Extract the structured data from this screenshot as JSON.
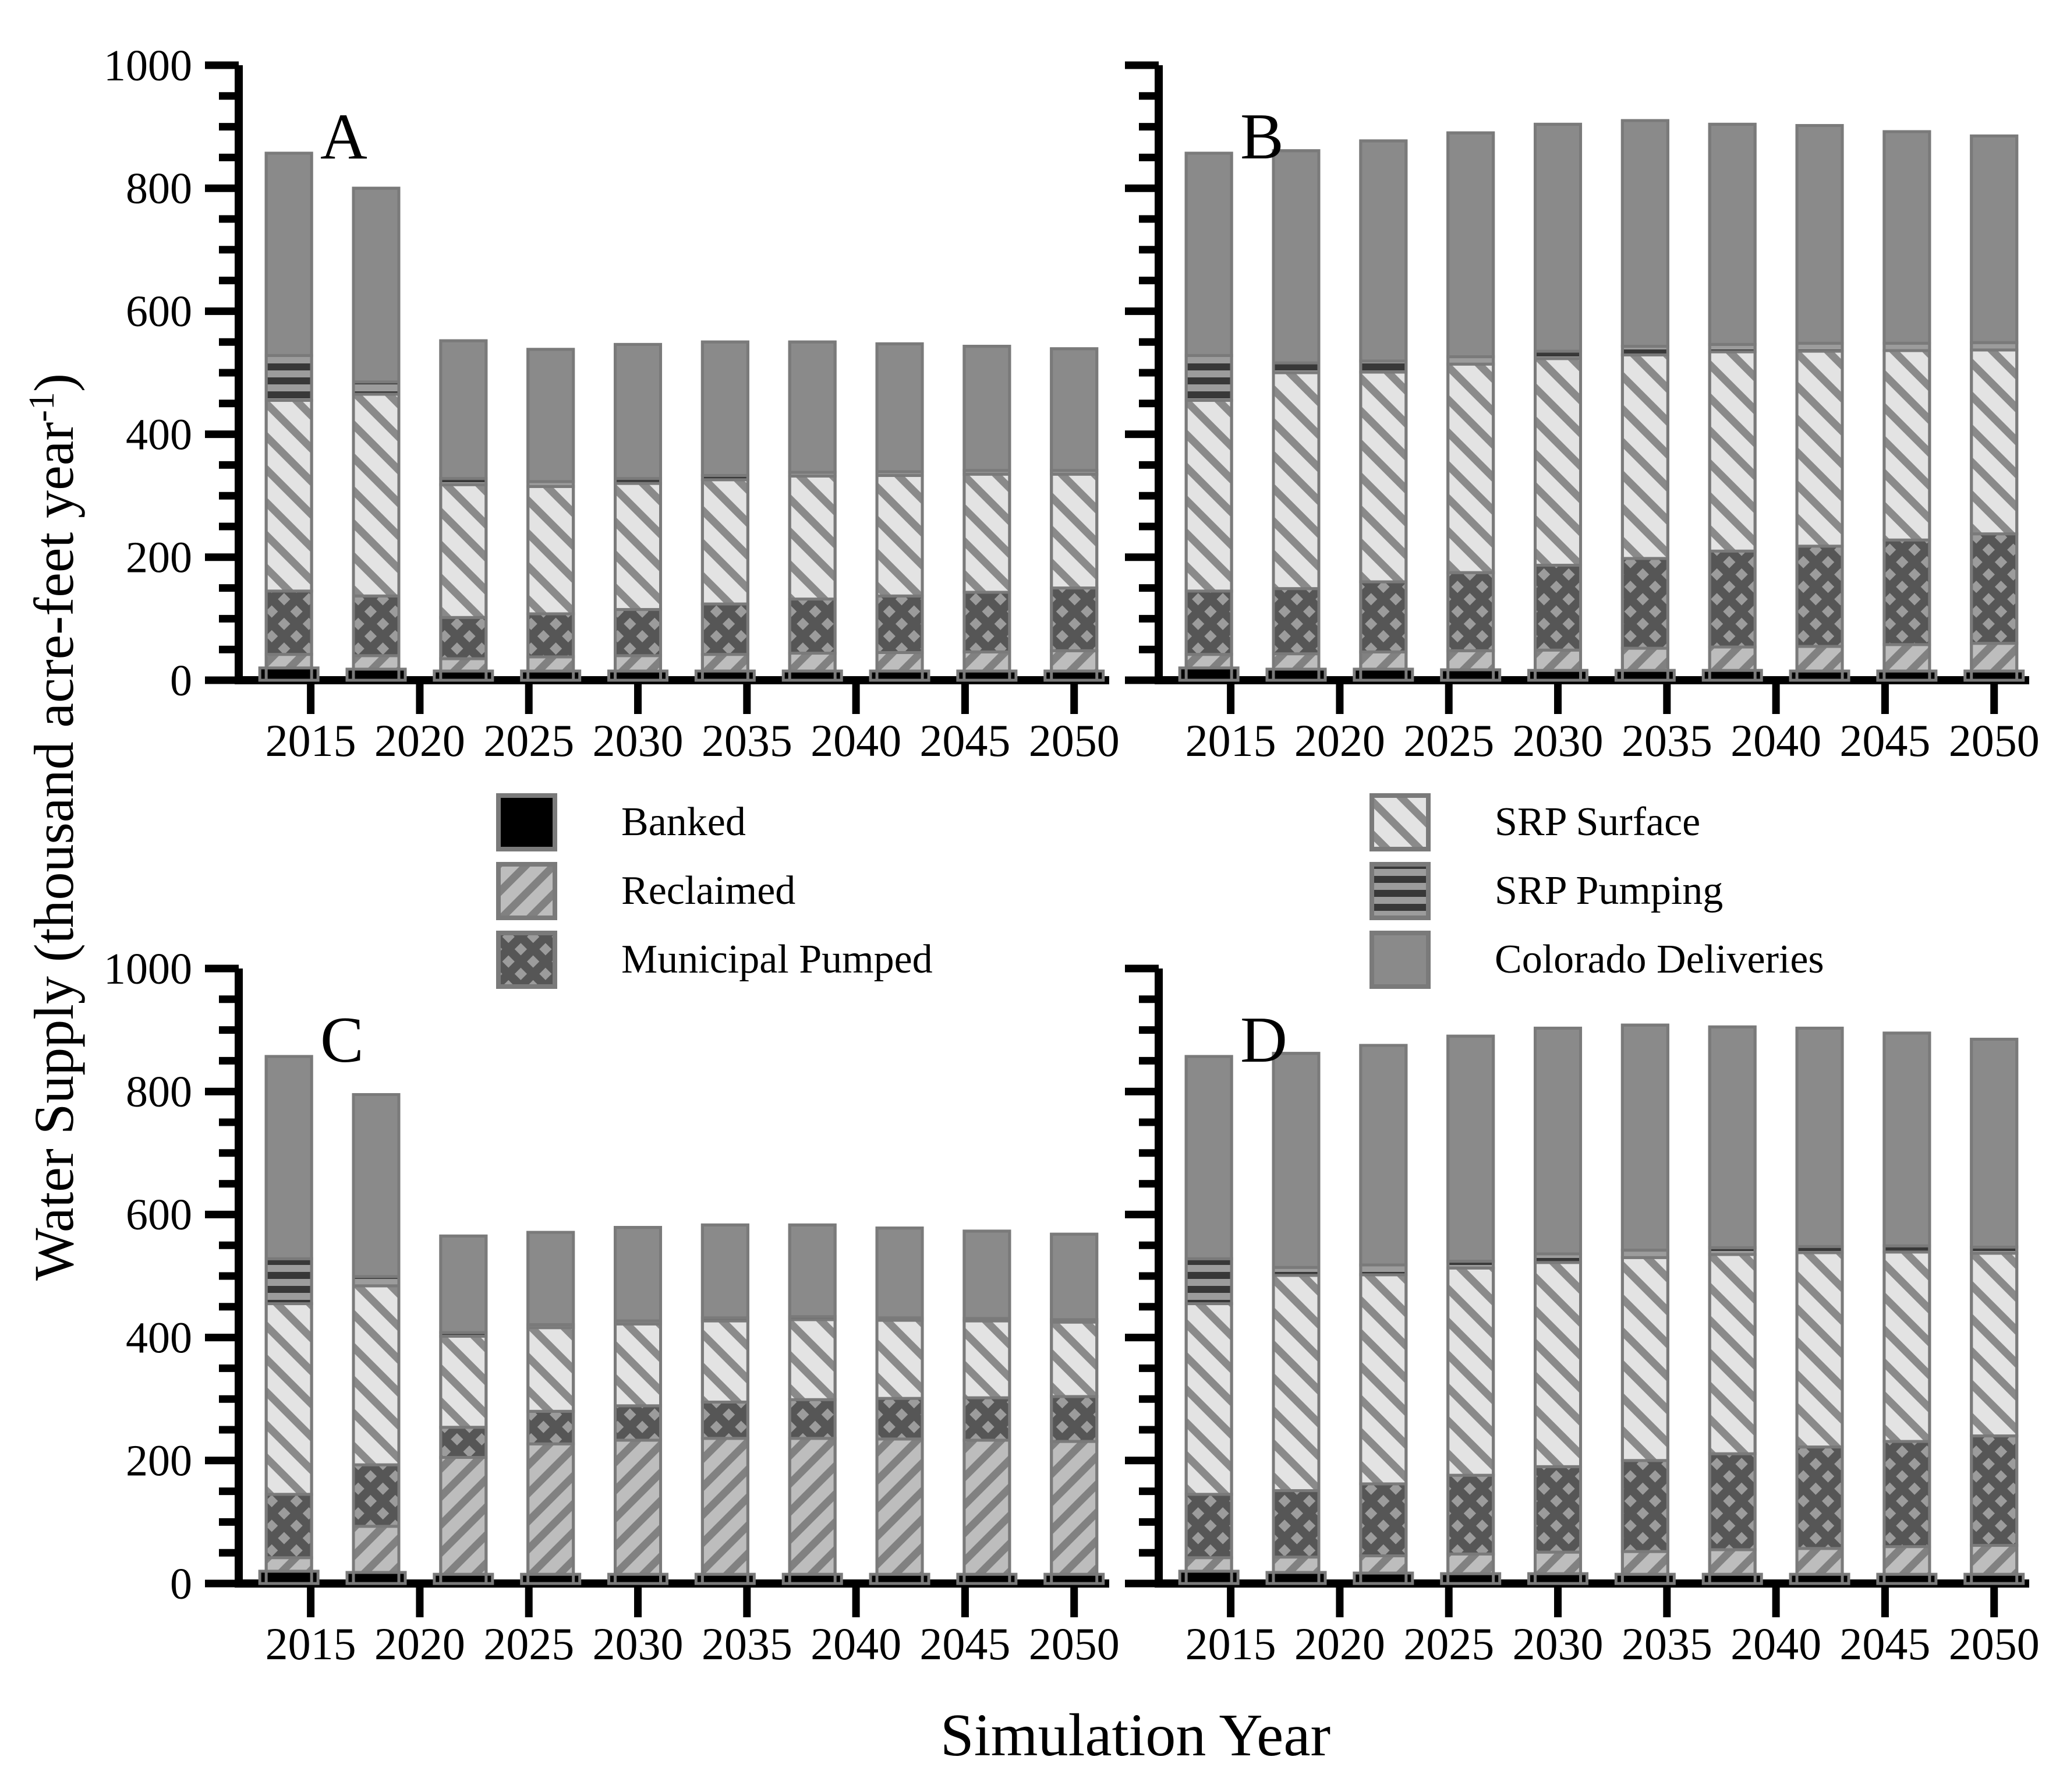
{
  "figure": {
    "y_axis_title_main": "Water Supply (thousand acre-feet year",
    "y_axis_title_sup": "-1",
    "y_axis_title_close": ")",
    "x_axis_title": "Simulation Year"
  },
  "colors": {
    "axis": "#000000",
    "segment_edge": "#7a7a7a",
    "banked_fill": "#000000",
    "reclaimed_bg": "#bdbdbd",
    "reclaimed_line": "#818181",
    "municipal_bg": "#9c9c9c",
    "municipal_line": "#565656",
    "srp_surface_bg": "#e3e3e3",
    "srp_surface_line": "#8a8a8a",
    "srp_pumping_bg": "#9c9c9c",
    "srp_pumping_line": "#383838",
    "colorado_fill": "#8a8a8a"
  },
  "legend": {
    "entries": [
      {
        "key": "banked",
        "label": "Banked"
      },
      {
        "key": "reclaimed",
        "label": "Reclaimed"
      },
      {
        "key": "municipal_pumped",
        "label": "Municipal Pumped"
      },
      {
        "key": "srp_surface",
        "label": "SRP Surface"
      },
      {
        "key": "srp_pumping",
        "label": "SRP Pumping"
      },
      {
        "key": "colorado",
        "label": "Colorado Deliveries"
      }
    ]
  },
  "chart_data": {
    "type": "bar",
    "stacked": true,
    "title": "",
    "xlabel": "Simulation Year",
    "ylabel": "Water Supply (thousand acre-feet year-1)",
    "x": [
      2014,
      2018,
      2022,
      2026,
      2030,
      2034,
      2038,
      2042,
      2046,
      2050
    ],
    "xticks": [
      2015,
      2020,
      2025,
      2030,
      2035,
      2040,
      2045,
      2050
    ],
    "ylim": [
      0,
      1000
    ],
    "ytick_major_step": 200,
    "ytick_minor_step": 50,
    "grid": false,
    "legend_position": "center-between-rows",
    "series_order": [
      "Banked",
      "Reclaimed",
      "Municipal Pumped",
      "SRP Surface",
      "SRP Pumping",
      "Colorado Deliveries"
    ],
    "panels": [
      {
        "label": "A",
        "series": [
          {
            "name": "Banked",
            "key": "banked",
            "values": [
              20,
              18,
              15,
              15,
              15,
              15,
              15,
              15,
              15,
              15
            ]
          },
          {
            "name": "Reclaimed",
            "key": "reclaimed",
            "values": [
              22,
              22,
              20,
              23,
              25,
              27,
              29,
              30,
              31,
              33
            ]
          },
          {
            "name": "Municipal Pumped",
            "key": "municipal_pumped",
            "values": [
              103,
              97,
              67,
              70,
              75,
              82,
              88,
              92,
              97,
              102
            ]
          },
          {
            "name": "SRP Surface",
            "key": "srp_surface",
            "values": [
              310,
              328,
              216,
              207,
              205,
              202,
              200,
              196,
              192,
              185
            ]
          },
          {
            "name": "SRP Pumping",
            "key": "srp_pumping",
            "values": [
              73,
              20,
              10,
              8,
              8,
              7,
              6,
              6,
              6,
              6
            ]
          },
          {
            "name": "Colorado Deliveries",
            "key": "colorado",
            "values": [
              329,
              315,
              224,
              215,
              218,
              217,
              212,
              208,
              202,
              198
            ]
          }
        ]
      },
      {
        "label": "B",
        "series": [
          {
            "name": "Banked",
            "key": "banked",
            "values": [
              20,
              18,
              18,
              17,
              16,
              16,
              16,
              15,
              15,
              15
            ]
          },
          {
            "name": "Reclaimed",
            "key": "reclaimed",
            "values": [
              22,
              25,
              28,
              31,
              33,
              36,
              38,
              40,
              43,
              45
            ]
          },
          {
            "name": "Municipal Pumped",
            "key": "municipal_pumped",
            "values": [
              103,
              106,
              114,
              127,
              138,
              146,
              156,
              163,
              170,
              178
            ]
          },
          {
            "name": "SRP Surface",
            "key": "srp_surface",
            "values": [
              310,
              351,
              341,
              339,
              336,
              331,
              324,
              317,
              308,
              299
            ]
          },
          {
            "name": "SRP Pumping",
            "key": "srp_pumping",
            "values": [
              73,
              16,
              18,
              12,
              12,
              14,
              12,
              13,
              12,
              12
            ]
          },
          {
            "name": "Colorado Deliveries",
            "key": "colorado",
            "values": [
              329,
              345,
              358,
              364,
              369,
              367,
              358,
              354,
              344,
              336
            ]
          }
        ]
      },
      {
        "label": "C",
        "series": [
          {
            "name": "Banked",
            "key": "banked",
            "values": [
              20,
              18,
              15,
              15,
              15,
              15,
              15,
              15,
              15,
              15
            ]
          },
          {
            "name": "Reclaimed",
            "key": "reclaimed",
            "values": [
              22,
              75,
              190,
              212,
              218,
              221,
              221,
              220,
              218,
              216
            ]
          },
          {
            "name": "Municipal Pumped",
            "key": "municipal_pumped",
            "values": [
              103,
              100,
              49,
              53,
              56,
              59,
              63,
              66,
              69,
              73
            ]
          },
          {
            "name": "SRP Surface",
            "key": "srp_surface",
            "values": [
              310,
              291,
              148,
              136,
              133,
              132,
              130,
              127,
              125,
              121
            ]
          },
          {
            "name": "SRP Pumping",
            "key": "srp_pumping",
            "values": [
              73,
              15,
              6,
              5,
              5,
              5,
              5,
              4,
              4,
              4
            ]
          },
          {
            "name": "Colorado Deliveries",
            "key": "colorado",
            "values": [
              329,
              296,
              157,
              150,
              152,
              151,
              149,
              146,
              142,
              139
            ]
          }
        ]
      },
      {
        "label": "D",
        "series": [
          {
            "name": "Banked",
            "key": "banked",
            "values": [
              20,
              18,
              17,
              16,
              16,
              15,
              15,
              15,
              15,
              15
            ]
          },
          {
            "name": "Reclaimed",
            "key": "reclaimed",
            "values": [
              22,
              25,
              28,
              32,
              35,
              37,
              40,
              42,
              45,
              47
            ]
          },
          {
            "name": "Municipal Pumped",
            "key": "municipal_pumped",
            "values": [
              103,
              108,
              117,
              128,
              139,
              148,
              156,
              165,
              171,
              178
            ]
          },
          {
            "name": "SRP Surface",
            "key": "srp_surface",
            "values": [
              310,
              350,
              340,
              337,
              332,
              330,
              324,
              316,
              308,
              297
            ]
          },
          {
            "name": "SRP Pumping",
            "key": "srp_pumping",
            "values": [
              73,
              13,
              16,
              11,
              14,
              12,
              11,
              10,
              10,
              10
            ]
          },
          {
            "name": "Colorado Deliveries",
            "key": "colorado",
            "values": [
              329,
              348,
              357,
              366,
              367,
              366,
              359,
              355,
              346,
              338
            ]
          }
        ]
      }
    ]
  }
}
